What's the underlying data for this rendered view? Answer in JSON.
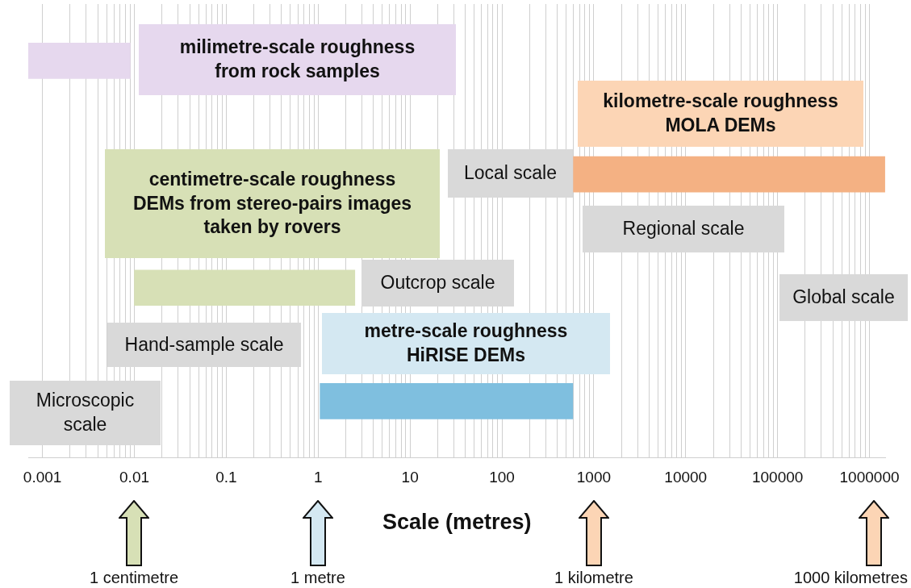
{
  "chart_data": {
    "type": "bar",
    "orientation": "horizontal",
    "xlabel": "Scale (metres)",
    "categories": [
      null,
      null,
      null,
      null
    ],
    "base": [
      0.0007,
      600,
      0.01,
      1.05
    ],
    "values": [
      0.0083,
      1470000,
      2.5,
      590
    ],
    "colors": [
      "#e6d8ee",
      "#f4b183",
      "#d7e0b6",
      "#7fbfdf"
    ],
    "log": "x",
    "xlim": [
      0.0007,
      1500000
    ],
    "xticks": [
      0.001,
      {
        "value": 0.002,
        "label": null
      },
      {
        "value": 0.003,
        "label": null
      },
      {
        "value": 0.004,
        "label": null
      },
      {
        "value": 0.005,
        "label": null
      },
      {
        "value": 0.006,
        "label": null
      },
      {
        "value": 0.007,
        "label": null
      },
      {
        "value": 0.008,
        "label": null
      },
      {
        "value": 0.009,
        "label": null
      },
      0.01,
      {
        "value": 0.02,
        "label": null
      },
      {
        "value": 0.03,
        "label": null
      },
      {
        "value": 0.04,
        "label": null
      },
      {
        "value": 0.05,
        "label": null
      },
      {
        "value": 0.06,
        "label": null
      },
      {
        "value": 0.07,
        "label": null
      },
      {
        "value": 0.08,
        "label": null
      },
      {
        "value": 0.09,
        "label": null
      },
      0.1,
      {
        "value": 0.2,
        "label": null
      },
      {
        "value": 0.3,
        "label": null
      },
      {
        "value": 0.4,
        "label": null
      },
      {
        "value": 0.5,
        "label": null
      },
      {
        "value": 0.6,
        "label": null
      },
      {
        "value": 0.7,
        "label": null
      },
      {
        "value": 0.8,
        "label": null
      },
      {
        "value": 0.9,
        "label": null
      },
      1,
      {
        "value": 2,
        "label": null
      },
      {
        "value": 3,
        "label": null
      },
      {
        "value": 4,
        "label": null
      },
      {
        "value": 5,
        "label": null
      },
      {
        "value": 6,
        "label": null
      },
      {
        "value": 7,
        "label": null
      },
      {
        "value": 8,
        "label": null
      },
      {
        "value": 9,
        "label": null
      },
      10,
      {
        "value": 20,
        "label": null
      },
      {
        "value": 30,
        "label": null
      },
      {
        "value": 40,
        "label": null
      },
      {
        "value": 50,
        "label": null
      },
      {
        "value": 60,
        "label": null
      },
      {
        "value": 70,
        "label": null
      },
      {
        "value": 80,
        "label": null
      },
      {
        "value": 90,
        "label": null
      },
      100,
      {
        "value": 200,
        "label": null
      },
      {
        "value": 300,
        "label": null
      },
      {
        "value": 400,
        "label": null
      },
      {
        "value": 500,
        "label": null
      },
      {
        "value": 600,
        "label": null
      },
      {
        "value": 700,
        "label": null
      },
      {
        "value": 800,
        "label": null
      },
      {
        "value": 900,
        "label": null
      },
      1000,
      {
        "value": 2000,
        "label": null
      },
      {
        "value": 3000,
        "label": null
      },
      {
        "value": 4000,
        "label": null
      },
      {
        "value": 5000,
        "label": null
      },
      {
        "value": 6000,
        "label": null
      },
      {
        "value": 7000,
        "label": null
      },
      {
        "value": 8000,
        "label": null
      },
      {
        "value": 9000,
        "label": null
      },
      10000,
      {
        "value": 20000,
        "label": null
      },
      {
        "value": 30000,
        "label": null
      },
      {
        "value": 40000,
        "label": null
      },
      {
        "value": 50000,
        "label": null
      },
      {
        "value": 60000,
        "label": null
      },
      {
        "value": 70000,
        "label": null
      },
      {
        "value": 80000,
        "label": null
      },
      {
        "value": 90000,
        "label": null
      },
      100000,
      {
        "value": 200000,
        "label": null
      },
      {
        "value": 300000,
        "label": null
      },
      {
        "value": 400000,
        "label": null
      },
      {
        "value": 500000,
        "label": null
      },
      {
        "value": 600000,
        "label": null
      },
      {
        "value": 700000,
        "label": null
      },
      {
        "value": 800000,
        "label": null
      },
      {
        "value": 900000,
        "label": null
      },
      1000000
    ],
    "grid": "x",
    "tick_labels": "x",
    "legend": false,
    "annotations": [
      "milimetre-scale roughness\nfrom rock samples",
      "centimetre-scale roughness\nDEMs from stereo-pairs images\ntaken by rovers",
      "kilometre-scale roughness\nMOLA DEMs",
      "metre-scale roughness\nHiRISE DEMs",
      "Local scale",
      "Outcrop scale",
      "Regional scale",
      "Global scale",
      "Hand-sample scale",
      "Microscopic\nscale",
      "1 centimetre",
      "1 metre",
      "1 kilometre",
      "1000 kilometres"
    ]
  }
}
